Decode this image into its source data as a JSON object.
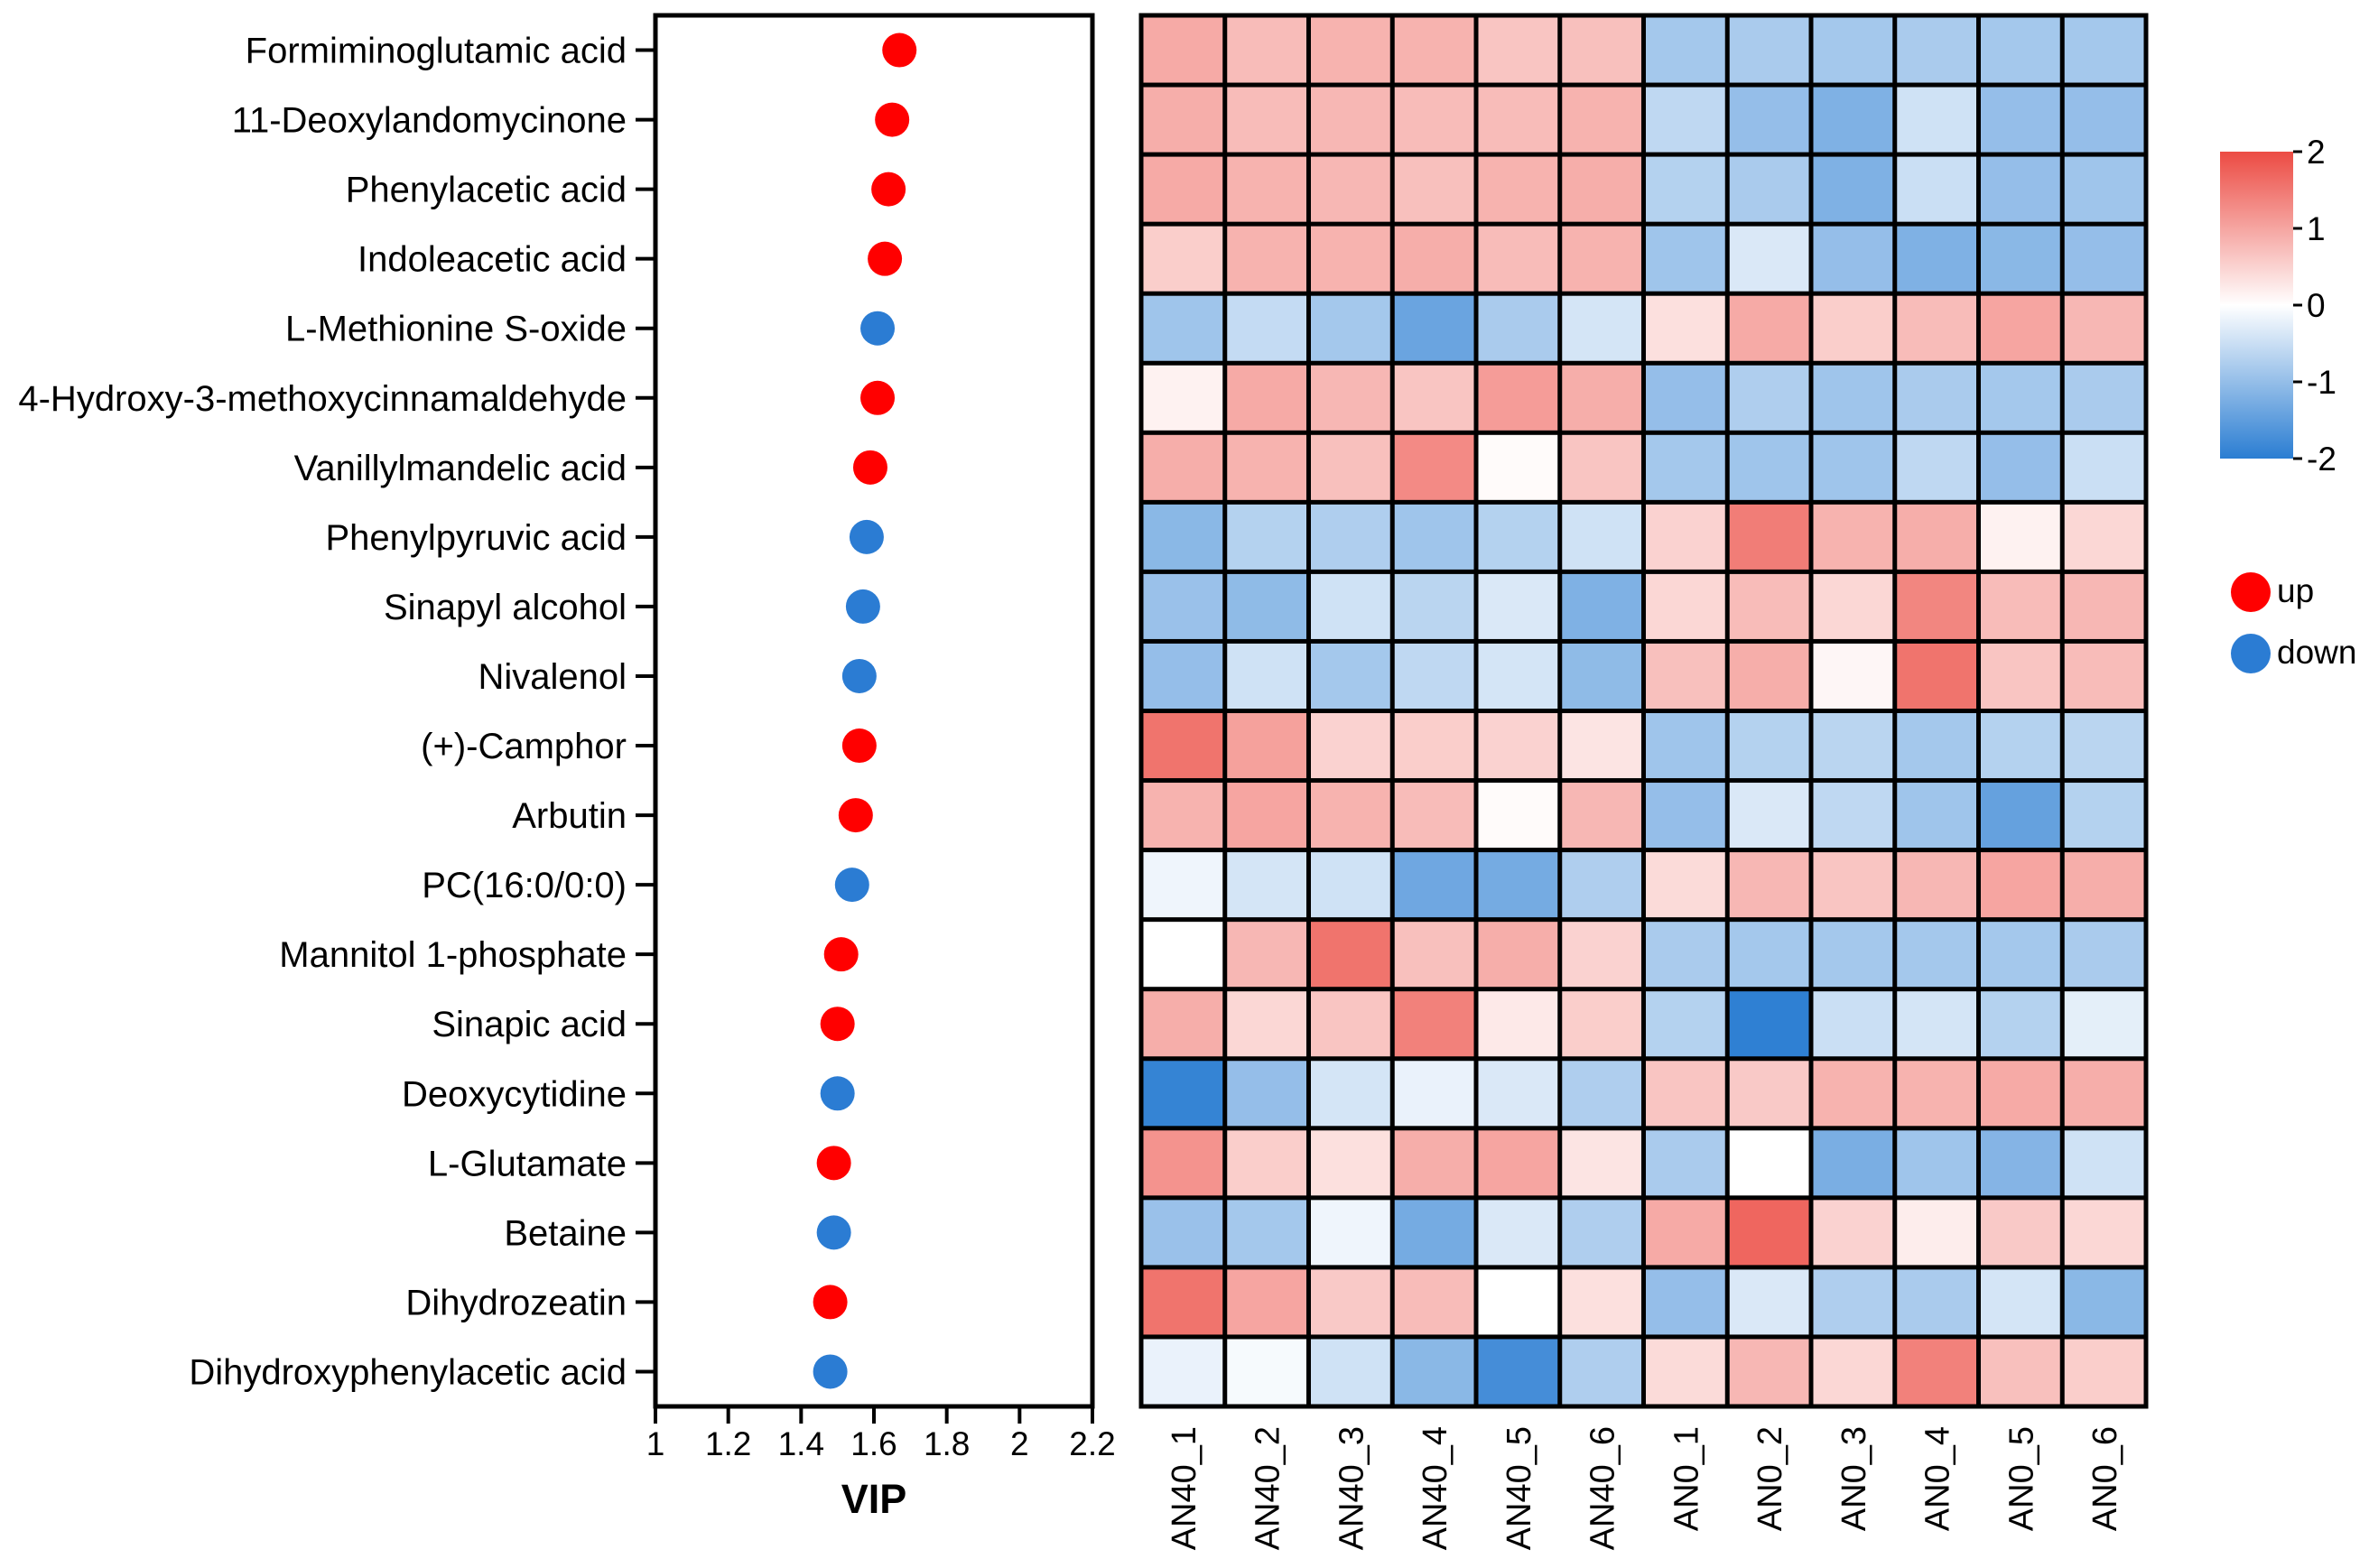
{
  "chart_data": [
    {
      "type": "scatter",
      "xlabel": "VIP",
      "xlim": [
        1,
        2.2
      ],
      "xticks": [
        "1",
        "1.2",
        "1.4",
        "1.6",
        "1.8",
        "2",
        "2.2"
      ],
      "categories": [
        "Formiminoglutamic acid",
        "11-Deoxylandomycinone",
        "Phenylacetic acid",
        "Indoleacetic acid",
        "L-Methionine S-oxide",
        "4-Hydroxy-3-methoxycinnamaldehyde",
        "Vanillylmandelic acid",
        "Phenylpyruvic acid",
        "Sinapyl alcohol",
        "Nivalenol",
        "(+)-Camphor",
        "Arbutin",
        "PC(16:0/0:0)",
        "Mannitol 1-phosphate",
        "Sinapic acid",
        "Deoxycytidine",
        "L-Glutamate",
        "Betaine",
        "Dihydrozeatin",
        "Dihydroxyphenylacetic acid"
      ],
      "values": [
        1.67,
        1.65,
        1.64,
        1.63,
        1.61,
        1.61,
        1.59,
        1.58,
        1.57,
        1.56,
        1.56,
        1.55,
        1.54,
        1.51,
        1.5,
        1.5,
        1.49,
        1.49,
        1.48,
        1.48
      ],
      "groups": [
        "up",
        "up",
        "up",
        "up",
        "down",
        "up",
        "up",
        "down",
        "down",
        "down",
        "up",
        "up",
        "down",
        "up",
        "up",
        "down",
        "up",
        "down",
        "up",
        "down"
      ],
      "legend": [
        {
          "label": "up",
          "color": "#ff0000"
        },
        {
          "label": "down",
          "color": "#2b7cd3"
        }
      ],
      "legend_position": "right"
    },
    {
      "type": "heatmap",
      "columns": [
        "AN40_1",
        "AN40_2",
        "AN40_3",
        "AN40_4",
        "AN40_5",
        "AN40_6",
        "AN0_1",
        "AN0_2",
        "AN0_3",
        "AN0_4",
        "AN0_5",
        "AN0_6"
      ],
      "values": [
        [
          0.95,
          0.75,
          0.85,
          0.85,
          0.65,
          0.7,
          -0.85,
          -0.8,
          -0.85,
          -0.8,
          -0.85,
          -0.85
        ],
        [
          0.9,
          0.75,
          0.8,
          0.75,
          0.75,
          0.85,
          -0.6,
          -1.0,
          -1.2,
          -0.45,
          -1.0,
          -1.0
        ],
        [
          0.95,
          0.85,
          0.8,
          0.7,
          0.85,
          0.9,
          -0.7,
          -0.8,
          -1.2,
          -0.5,
          -1.0,
          -0.9
        ],
        [
          0.55,
          0.85,
          0.85,
          0.9,
          0.75,
          0.85,
          -0.9,
          -0.35,
          -1.0,
          -1.2,
          -1.1,
          -1.0
        ],
        [
          -0.9,
          -0.55,
          -0.85,
          -1.4,
          -0.8,
          -0.4,
          0.35,
          0.95,
          0.55,
          0.75,
          1.0,
          0.8
        ],
        [
          0.15,
          0.95,
          0.8,
          0.65,
          1.1,
          0.9,
          -1.0,
          -0.75,
          -0.9,
          -0.8,
          -0.85,
          -0.8
        ],
        [
          0.9,
          0.85,
          0.7,
          1.3,
          0.05,
          0.65,
          -0.85,
          -0.9,
          -0.9,
          -0.6,
          -1.0,
          -0.5
        ],
        [
          -1.1,
          -0.7,
          -0.75,
          -0.9,
          -0.7,
          -0.45,
          0.5,
          1.45,
          0.85,
          0.9,
          0.15,
          0.45
        ],
        [
          -0.95,
          -1.05,
          -0.45,
          -0.65,
          -0.35,
          -1.2,
          0.45,
          0.75,
          0.45,
          1.35,
          0.75,
          0.8
        ],
        [
          -1.0,
          -0.45,
          -0.85,
          -0.6,
          -0.4,
          -1.05,
          0.7,
          0.9,
          0.1,
          1.55,
          0.65,
          0.75
        ],
        [
          1.55,
          1.05,
          0.5,
          0.55,
          0.5,
          0.3,
          -0.9,
          -0.7,
          -0.65,
          -0.85,
          -0.7,
          -0.65
        ],
        [
          0.85,
          1.0,
          0.85,
          0.75,
          0.05,
          0.8,
          -1.0,
          -0.35,
          -0.6,
          -0.9,
          -1.45,
          -0.7
        ],
        [
          -0.15,
          -0.4,
          -0.45,
          -1.35,
          -1.3,
          -0.75,
          0.4,
          0.8,
          0.65,
          0.8,
          1.0,
          0.9
        ],
        [
          0.0,
          0.8,
          1.55,
          0.7,
          0.9,
          0.5,
          -0.8,
          -0.85,
          -0.85,
          -0.85,
          -0.85,
          -0.8
        ],
        [
          0.9,
          0.45,
          0.65,
          1.4,
          0.25,
          0.55,
          -0.7,
          -1.95,
          -0.5,
          -0.4,
          -0.7,
          -0.25
        ],
        [
          -1.9,
          -1.0,
          -0.4,
          -0.2,
          -0.35,
          -0.75,
          0.65,
          0.6,
          0.85,
          0.85,
          0.95,
          0.9
        ],
        [
          1.2,
          0.55,
          0.35,
          0.9,
          1.0,
          0.3,
          -0.8,
          0.0,
          -1.25,
          -0.9,
          -1.15,
          -0.45
        ],
        [
          -0.95,
          -0.85,
          -0.15,
          -1.3,
          -0.35,
          -0.75,
          0.95,
          1.7,
          0.5,
          0.2,
          0.6,
          0.45
        ],
        [
          1.55,
          1.0,
          0.6,
          0.75,
          0.0,
          0.35,
          -1.0,
          -0.35,
          -0.75,
          -0.8,
          -0.4,
          -1.1
        ],
        [
          -0.2,
          -0.08,
          -0.45,
          -1.1,
          -1.75,
          -0.75,
          0.4,
          0.8,
          0.45,
          1.4,
          0.7,
          0.55
        ]
      ],
      "colorbar": {
        "ticks": [
          "2",
          "1",
          "0",
          "-1",
          "-2"
        ],
        "range": [
          -2,
          2
        ],
        "colors": {
          "high": "#ec4b43",
          "mid": "#ffffff",
          "low": "#2a7dd2"
        }
      }
    }
  ]
}
